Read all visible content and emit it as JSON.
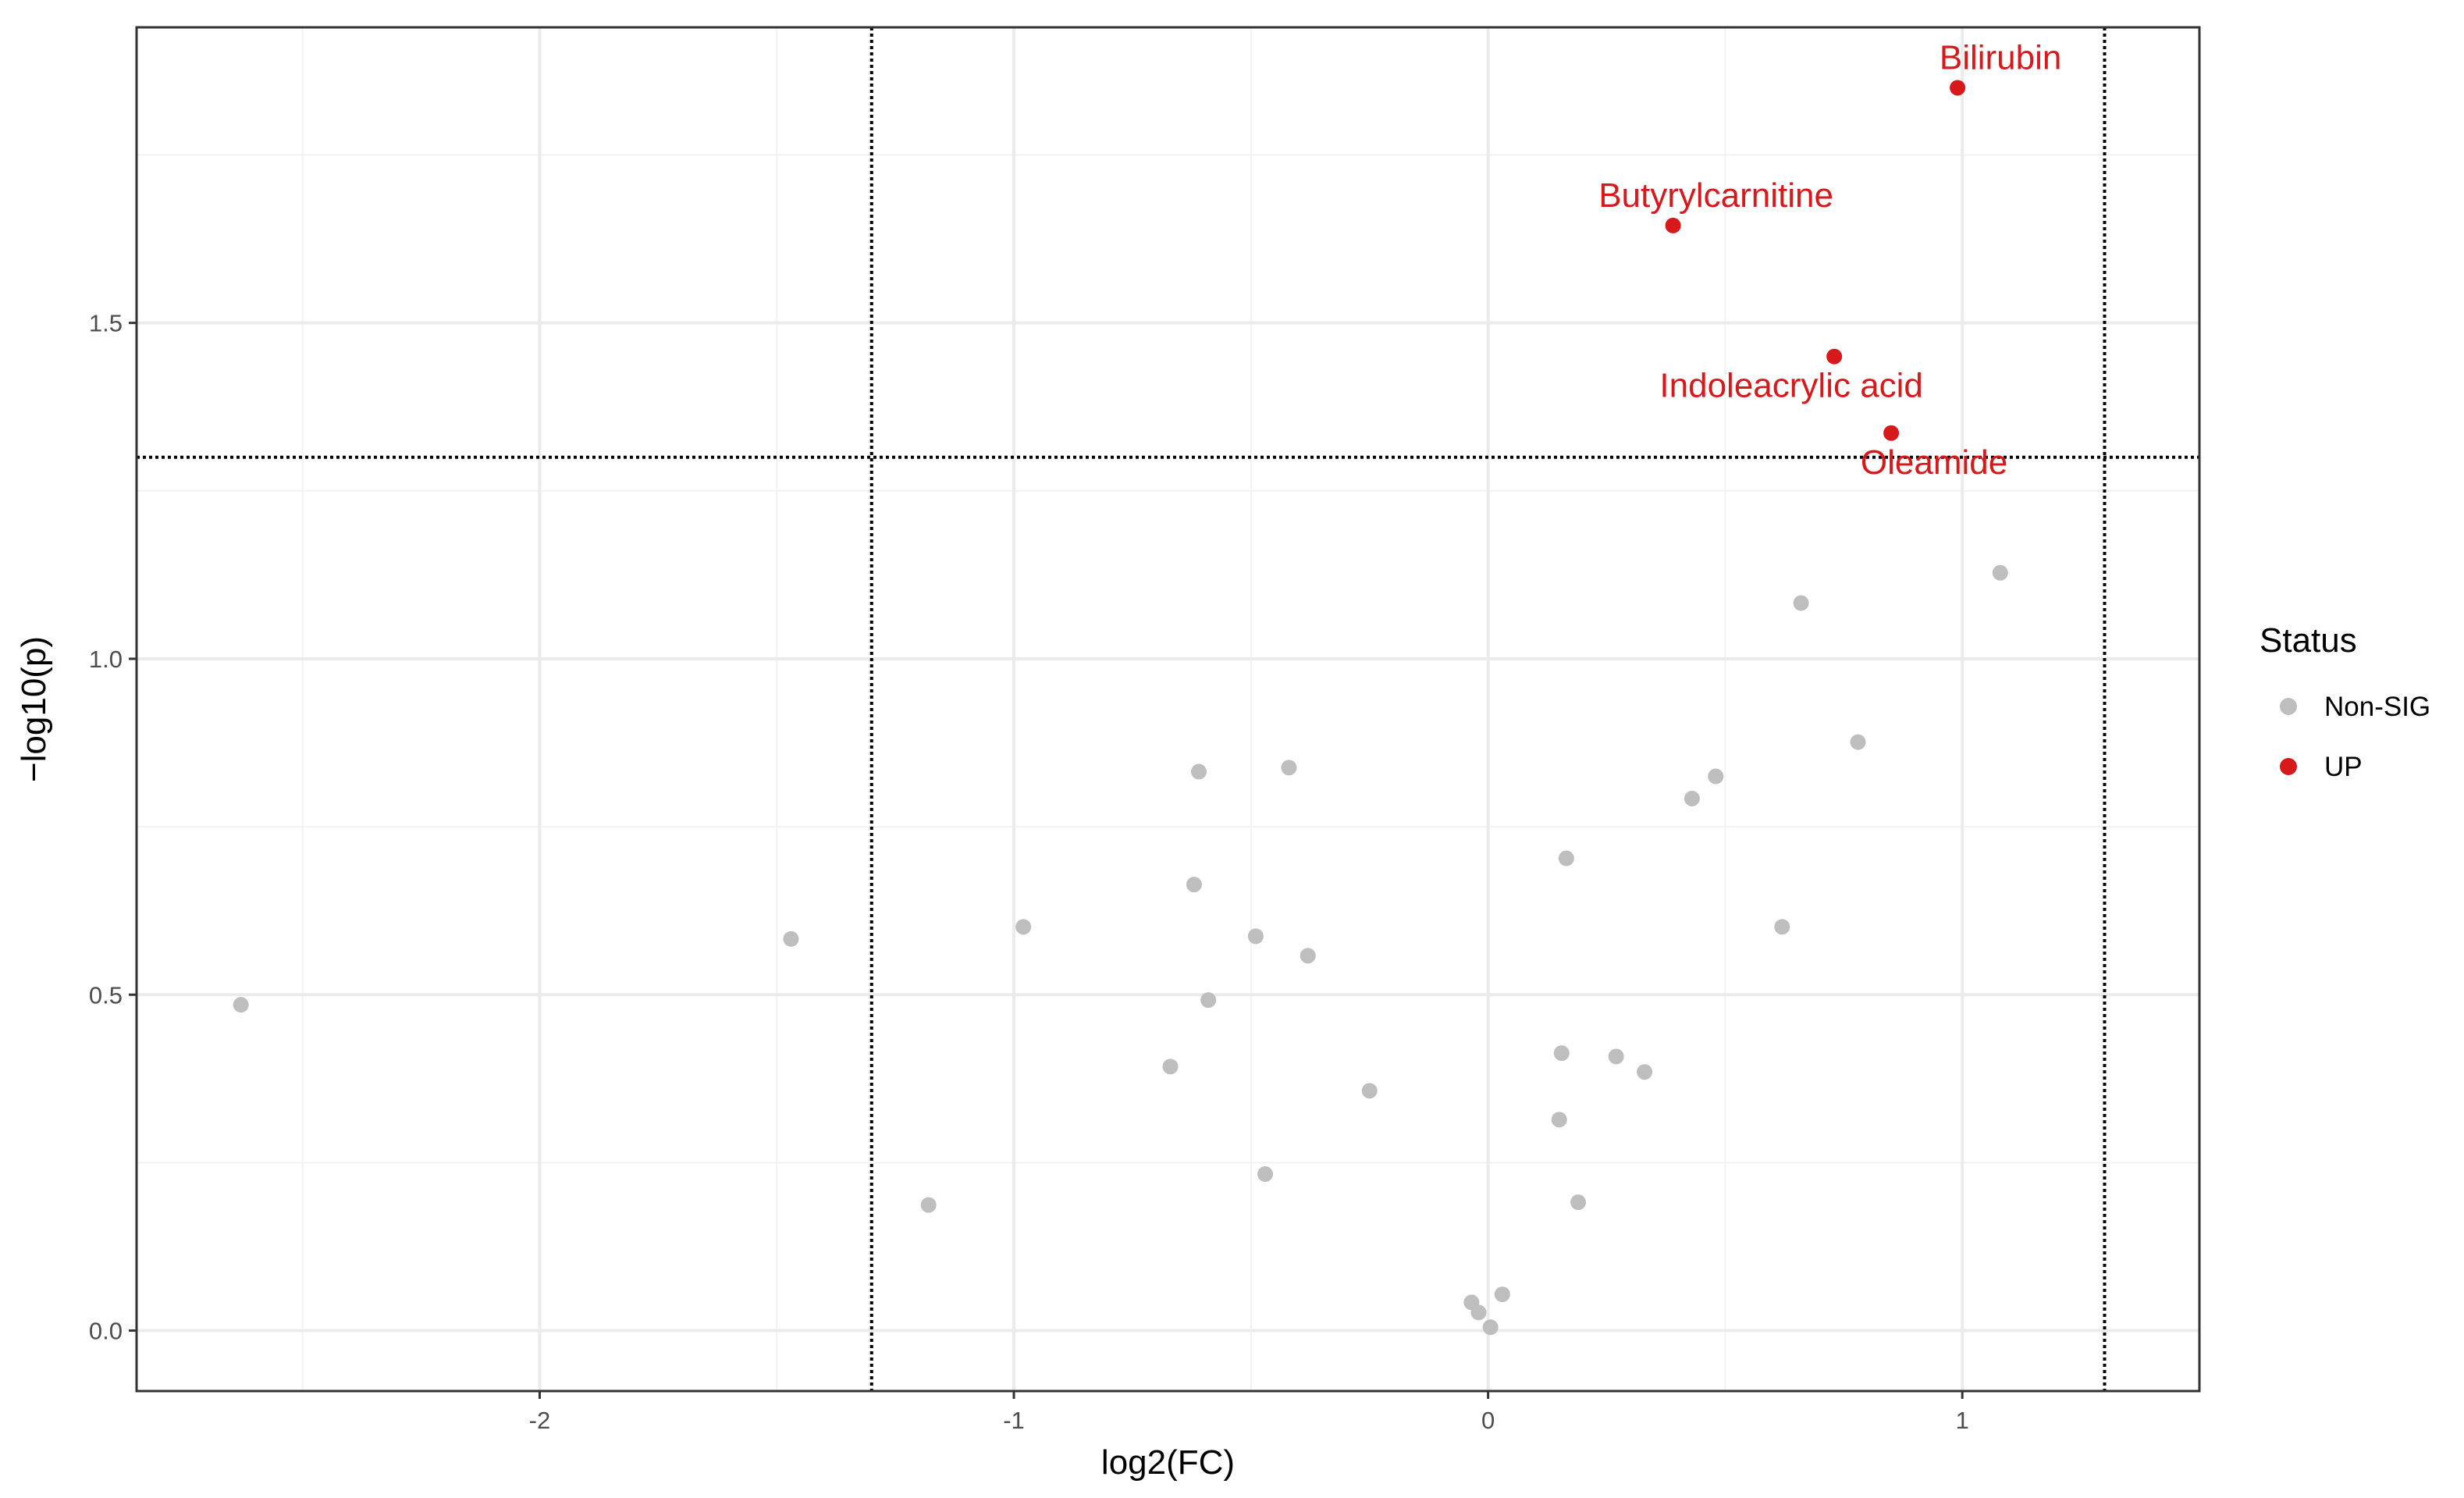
{
  "chart_data": {
    "type": "scatter",
    "title": "",
    "xlabel": "log2(FC)",
    "ylabel": "−log10(p)",
    "xlim": [
      -2.85,
      1.5
    ],
    "ylim": [
      -0.09,
      1.94
    ],
    "x_ticks": [
      -2,
      -1,
      0,
      1
    ],
    "x_tick_labels": [
      "-2",
      "-1",
      "0",
      "1"
    ],
    "y_ticks": [
      0.0,
      0.5,
      1.0,
      1.5
    ],
    "y_tick_labels": [
      "0.0",
      "0.5",
      "1.0",
      "1.5"
    ],
    "grid": true,
    "thresholds": {
      "x": [
        -1.3,
        1.3
      ],
      "y": [
        1.3
      ]
    },
    "legend": {
      "title": "Status",
      "position": "right",
      "entries": [
        {
          "label": "Non-SIG",
          "color": "#bebebe"
        },
        {
          "label": "UP",
          "color": "#d7191c"
        }
      ]
    },
    "series": [
      {
        "name": "Non-SIG",
        "color": "#bebebe",
        "points": [
          {
            "x": -2.63,
            "y": 0.485
          },
          {
            "x": -1.47,
            "y": 0.583
          },
          {
            "x": -1.18,
            "y": 0.187
          },
          {
            "x": -0.98,
            "y": 0.601
          },
          {
            "x": -0.67,
            "y": 0.393
          },
          {
            "x": -0.62,
            "y": 0.664
          },
          {
            "x": -0.61,
            "y": 0.832
          },
          {
            "x": -0.59,
            "y": 0.492
          },
          {
            "x": -0.49,
            "y": 0.587
          },
          {
            "x": -0.47,
            "y": 0.233
          },
          {
            "x": -0.42,
            "y": 0.838
          },
          {
            "x": -0.38,
            "y": 0.558
          },
          {
            "x": -0.25,
            "y": 0.357
          },
          {
            "x": -0.035,
            "y": 0.042
          },
          {
            "x": -0.02,
            "y": 0.027
          },
          {
            "x": 0.005,
            "y": 0.005
          },
          {
            "x": 0.03,
            "y": 0.054
          },
          {
            "x": 0.15,
            "y": 0.314
          },
          {
            "x": 0.155,
            "y": 0.413
          },
          {
            "x": 0.165,
            "y": 0.703
          },
          {
            "x": 0.19,
            "y": 0.191
          },
          {
            "x": 0.27,
            "y": 0.408
          },
          {
            "x": 0.33,
            "y": 0.385
          },
          {
            "x": 0.43,
            "y": 0.792
          },
          {
            "x": 0.48,
            "y": 0.825
          },
          {
            "x": 0.62,
            "y": 0.601
          },
          {
            "x": 0.66,
            "y": 1.083
          },
          {
            "x": 0.78,
            "y": 0.876
          },
          {
            "x": 1.08,
            "y": 1.128
          }
        ]
      },
      {
        "name": "UP",
        "color": "#d7191c",
        "points": [
          {
            "x": 0.99,
            "y": 1.85,
            "label": "Bilirubin"
          },
          {
            "x": 0.39,
            "y": 1.645,
            "label": "Butyrylcarnitine"
          },
          {
            "x": 0.73,
            "y": 1.45,
            "label": "Indoleacrylic acid"
          },
          {
            "x": 0.85,
            "y": 1.336,
            "label": "Oleamide"
          }
        ]
      }
    ]
  }
}
